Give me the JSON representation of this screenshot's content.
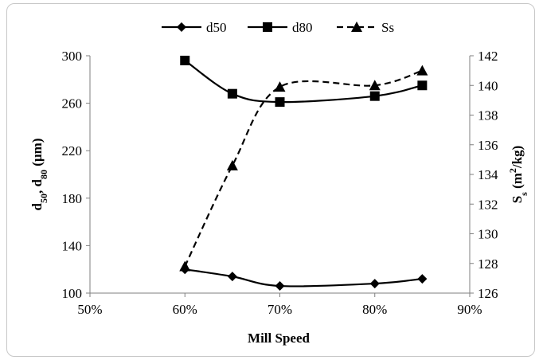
{
  "chart_data": {
    "type": "line",
    "title": "",
    "xlabel": "Mill Speed",
    "ylabel_left": {
      "main": "d",
      "sub1": "50",
      "sep": ", d",
      "sub2": "80",
      "unit": " (µm)"
    },
    "ylabel_right": {
      "main": "S",
      "sub": "s",
      "unit_pre": " (m",
      "sup": "2",
      "unit_post": "/kg)"
    },
    "x_ticks": [
      "50%",
      "60%",
      "70%",
      "80%",
      "90%"
    ],
    "x_tick_values": [
      50,
      60,
      70,
      80,
      90
    ],
    "xlim": [
      50,
      90
    ],
    "y_left_ticks": [
      "100",
      "140",
      "180",
      "220",
      "260",
      "300"
    ],
    "y_left_tick_values": [
      100,
      140,
      180,
      220,
      260,
      300
    ],
    "ylim_left": [
      100,
      300
    ],
    "y_right_ticks": [
      "126",
      "128",
      "130",
      "132",
      "134",
      "136",
      "138",
      "140",
      "142"
    ],
    "y_right_tick_values": [
      126,
      128,
      130,
      132,
      134,
      136,
      138,
      140,
      142
    ],
    "ylim_right": [
      126,
      142
    ],
    "x": [
      60,
      65,
      70,
      80,
      85
    ],
    "series": [
      {
        "name": "d50",
        "axis": "left",
        "marker": "diamond",
        "dash": "solid",
        "values": [
          120,
          114,
          106,
          108,
          112
        ]
      },
      {
        "name": "d80",
        "axis": "left",
        "marker": "square",
        "dash": "solid",
        "values": [
          296,
          268,
          261,
          266,
          275
        ]
      },
      {
        "name": "Ss",
        "axis": "right",
        "marker": "triangle",
        "dash": "dashed",
        "values": [
          127.8,
          134.6,
          139.9,
          140.0,
          141.0
        ]
      }
    ],
    "legend": "top",
    "grid": false,
    "colors": {
      "series": "#000000",
      "axis": "#7f7f7f",
      "frame": "#c8c8c8"
    }
  }
}
